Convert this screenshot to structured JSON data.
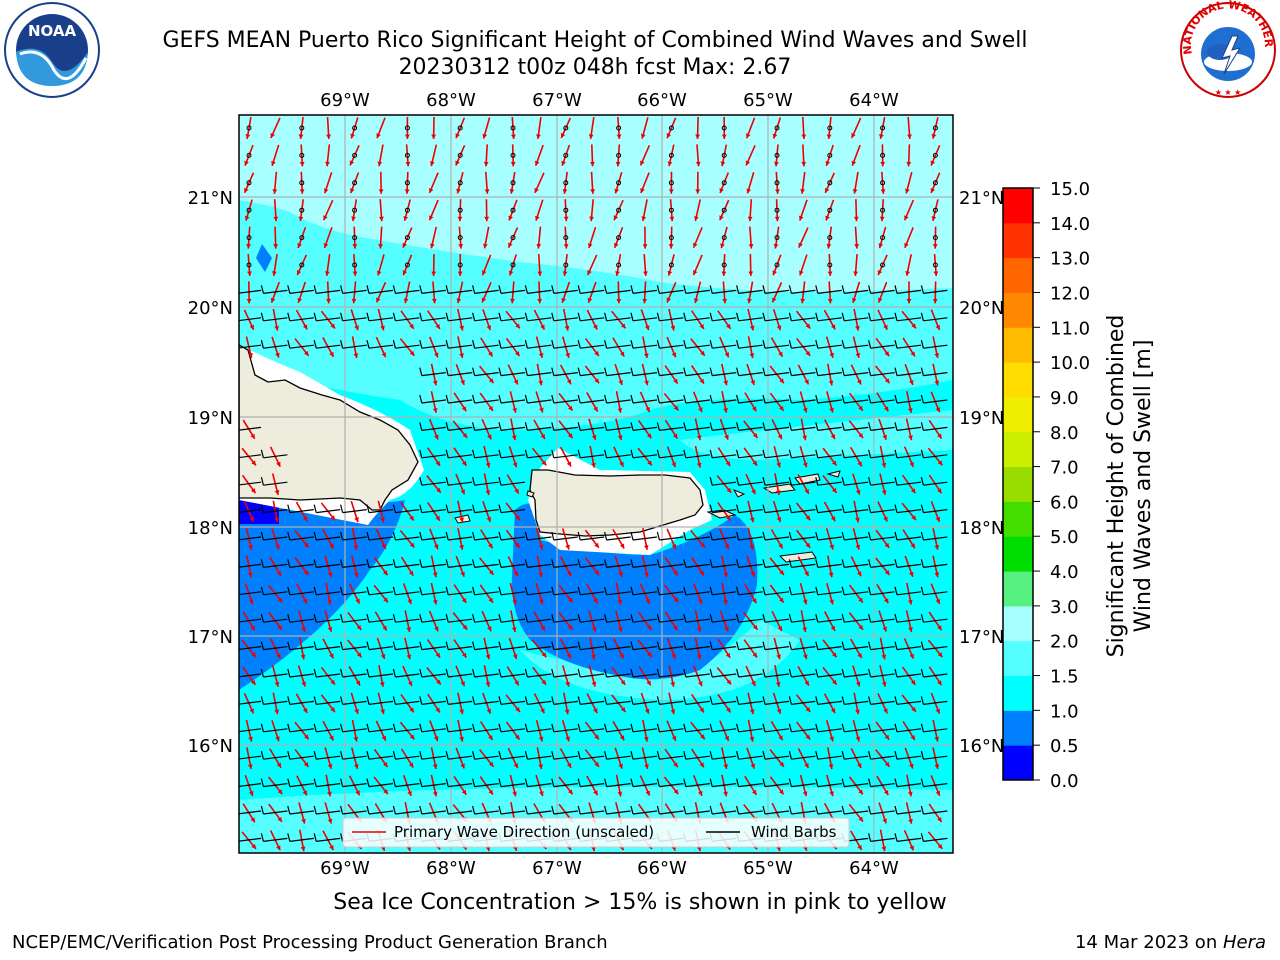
{
  "header": {
    "title_line1": "GEFS MEAN Puerto Rico Significant Height of Combined Wind Waves and Swell",
    "title_line2": "20230312 t00z 048h fcst   Max: 2.67"
  },
  "logos": {
    "left": {
      "icon": "noaa-logo-icon",
      "text": "NOAA"
    },
    "right": {
      "icon": "nws-logo-icon",
      "text": "NATIONAL WEATHER SERVICE"
    }
  },
  "map": {
    "lon_labels": [
      "69°W",
      "68°W",
      "67°W",
      "66°W",
      "65°W",
      "64°W"
    ],
    "lat_labels": [
      "21°N",
      "20°N",
      "19°N",
      "18°N",
      "17°N",
      "16°N"
    ],
    "legend": {
      "wave_label": "Primary Wave Direction (unscaled)",
      "wind_label": "Wind Barbs",
      "wave_color": "#ee0000",
      "wind_color": "#000000"
    },
    "colors": {
      "ocean_high": "#a8ffff",
      "ocean_mid": "#55ffff",
      "ocean_base": "#00ffff",
      "ocean_low": "#0080ff",
      "ocean_lowest": "#0000ff",
      "land": "#eeecdc",
      "grid": "#b0b0b0"
    }
  },
  "colorbar": {
    "label_line1": "Significant Height of Combined",
    "label_line2": "Wind Waves and Swell [m]",
    "ticks": [
      "0.0",
      "0.5",
      "1.0",
      "1.5",
      "2.0",
      "3.0",
      "4.0",
      "5.0",
      "6.0",
      "7.0",
      "8.0",
      "9.0",
      "10.0",
      "11.0",
      "12.0",
      "13.0",
      "14.0",
      "15.0"
    ],
    "colors": [
      "#0000ff",
      "#0080ff",
      "#00ffff",
      "#55ffff",
      "#a8ffff",
      "#55f080",
      "#00dd00",
      "#44dd00",
      "#99dd00",
      "#ccee00",
      "#eeee00",
      "#ffdd00",
      "#ffbb00",
      "#ff8800",
      "#ff6600",
      "#ff3300",
      "#ff0000"
    ]
  },
  "subnote": "Sea Ice Concentration > 15% is shown in pink to yellow",
  "footer": {
    "left": "NCEP/EMC/Verification Post Processing Product Generation Branch",
    "right_date": "14 Mar 2023 on ",
    "right_host": "Hera"
  }
}
